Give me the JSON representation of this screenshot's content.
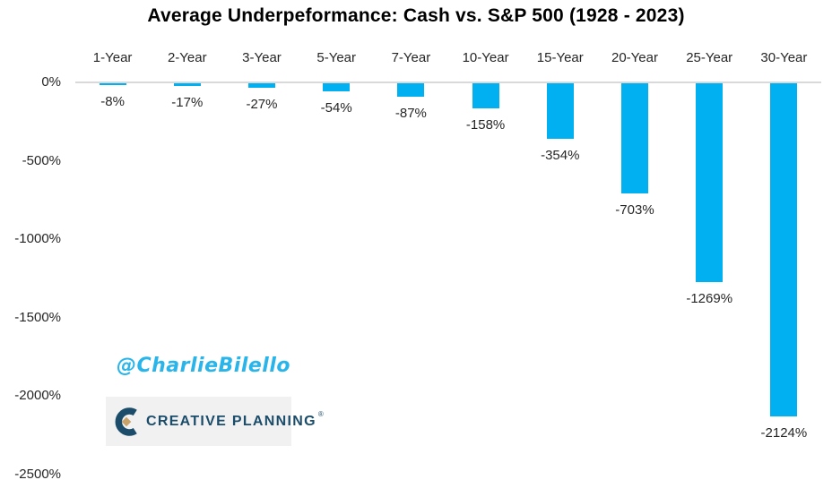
{
  "title": "Average Underpeformance: Cash vs. S&P 500 (1928 - 2023)",
  "watermark": "@CharlieBilello",
  "logo": {
    "brand": "CREATIVE PLANNING",
    "reg_mark": "®"
  },
  "colors": {
    "bar": "#00B0F0",
    "axis_line": "#D9D9D9",
    "watermark": "#29B5EA",
    "logo_navy": "#1B4D6B",
    "logo_gold": "#C7A36A",
    "logo_bg": "#F1F1F1",
    "label": "#262626",
    "title": "#000000"
  },
  "chart_data": {
    "type": "bar",
    "title": "Average Underpeformance: Cash vs. S&P 500 (1928 - 2023)",
    "categories": [
      "1-Year",
      "2-Year",
      "3-Year",
      "5-Year",
      "7-Year",
      "10-Year",
      "15-Year",
      "20-Year",
      "25-Year",
      "30-Year"
    ],
    "values": [
      -8,
      -17,
      -27,
      -54,
      -87,
      -158,
      -354,
      -703,
      -1269,
      -2124
    ],
    "value_labels": [
      "-8%",
      "-17%",
      "-27%",
      "-54%",
      "-87%",
      "-158%",
      "-354%",
      "-703%",
      "-1269%",
      "-2124%"
    ],
    "xlabel": "",
    "ylabel": "",
    "ylim": [
      -2500,
      0
    ],
    "yticks": [
      0,
      -500,
      -1000,
      -1500,
      -2000,
      -2500
    ],
    "ytick_labels": [
      "0%",
      "-500%",
      "-1000%",
      "-1500%",
      "-2000%",
      "-2500%"
    ],
    "grid": false,
    "legend": "none",
    "bar_color": "#00B0F0",
    "category_labels_position": "top-above-axis",
    "value_labels_position": "outside-end-below-bar"
  }
}
